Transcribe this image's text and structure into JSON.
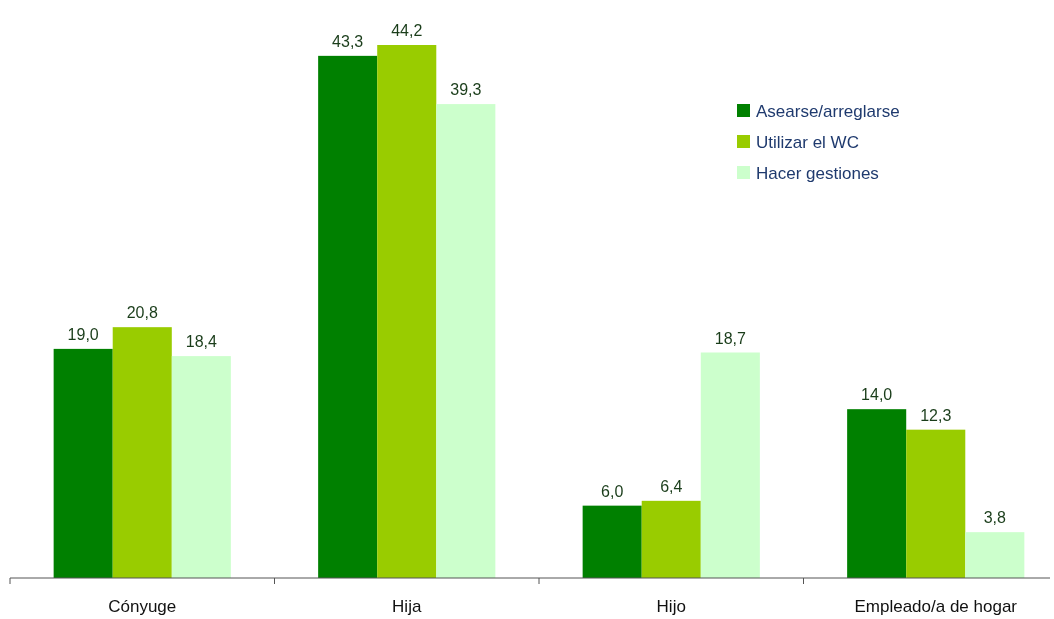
{
  "chart_data": {
    "type": "bar",
    "categories": [
      "Cónyuge",
      "Hija",
      "Hijo",
      "Empleado/a de hogar"
    ],
    "series": [
      {
        "name": "Asearse/arreglarse",
        "color": "#008000",
        "values": [
          19.0,
          43.3,
          6.0,
          14.0
        ],
        "value_labels": [
          "19,0",
          "43,3",
          "6,0",
          "14,0"
        ]
      },
      {
        "name": "Utilizar el WC",
        "color": "#99cc00",
        "values": [
          20.8,
          44.2,
          6.4,
          12.3
        ],
        "value_labels": [
          "20,8",
          "44,2",
          "6,4",
          "12,3"
        ]
      },
      {
        "name": "Hacer gestiones",
        "color": "#ccffcc",
        "values": [
          18.4,
          39.3,
          18.7,
          3.8
        ],
        "value_labels": [
          "18,4",
          "39,3",
          "18,7",
          "3,8"
        ]
      }
    ],
    "legend": "top right",
    "grid": false
  }
}
